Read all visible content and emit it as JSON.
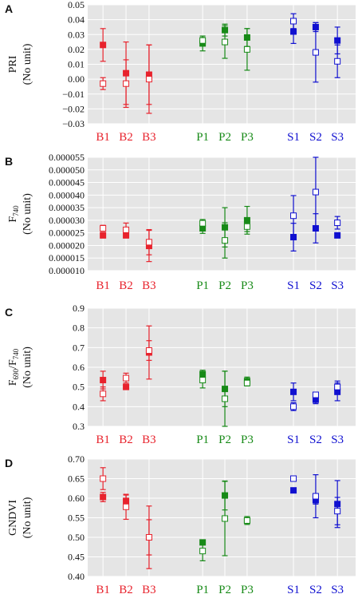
{
  "colors": {
    "B": "#e8232d",
    "P": "#178a17",
    "S": "#1010d0",
    "background": "#e5e5e5"
  },
  "chart_data": [
    {
      "panel": "A",
      "type": "scatter",
      "ylabel": [
        "PRI",
        "(No unit)"
      ],
      "ylim": [
        -0.03,
        0.05
      ],
      "yticks": [
        -0.03,
        -0.02,
        -0.01,
        0.0,
        0.01,
        0.02,
        0.03,
        0.04,
        0.05
      ],
      "ytick_labels": [
        "−0.03",
        "−0.02",
        "−0.01",
        "0.00",
        "0.01",
        "0.02",
        "0.03",
        "0.04",
        "0.05"
      ],
      "categories": [
        "B1",
        "B2",
        "B3",
        "P1",
        "P2",
        "P3",
        "S1",
        "S2",
        "S3"
      ],
      "grid": true,
      "series": [
        {
          "marker": "filled-square",
          "values": [
            0.023,
            0.004,
            0.003,
            0.024,
            0.033,
            0.028,
            0.032,
            0.035,
            0.026
          ],
          "err": [
            0.011,
            0.021,
            0.02,
            0.005,
            0.004,
            0.006,
            0.008,
            0.003,
            0.009
          ]
        },
        {
          "marker": "open-square",
          "values": [
            -0.003,
            -0.003,
            0.0,
            0.026,
            0.025,
            0.02,
            0.039,
            0.018,
            0.012
          ],
          "err": [
            0.004,
            0.016,
            0.023,
            0.002,
            0.011,
            0.014,
            0.005,
            0.02,
            0.011
          ]
        }
      ]
    },
    {
      "panel": "B",
      "type": "scatter",
      "ylabel": [
        "F740",
        "(No unit)"
      ],
      "ylim": [
        1e-05,
        5.5e-05
      ],
      "yticks": [
        1e-05,
        1.5e-05,
        2e-05,
        2.5e-05,
        3e-05,
        3.5e-05,
        4e-05,
        4.5e-05,
        5e-05,
        5.5e-05
      ],
      "ytick_labels": [
        "0.000010",
        "0.000015",
        "0.000020",
        "0.000025",
        "0.000030",
        "0.000035",
        "0.000040",
        "0.000045",
        "0.000050",
        "0.000055"
      ],
      "categories": [
        "B1",
        "B2",
        "B3",
        "P1",
        "P2",
        "P3",
        "S1",
        "S2",
        "S3"
      ],
      "grid": true,
      "series": [
        {
          "marker": "filled-square",
          "values": [
            2.4e-05,
            2.4e-05,
            1.98e-05,
            2.68e-05,
            2.72e-05,
            3e-05,
            2.33e-05,
            2.68e-05,
            2.4e-05
          ],
          "err": [
            1e-06,
            1e-06,
            6.2e-06,
            2e-06,
            7.8e-06,
            5.5e-06,
            5.5e-06,
            5.8e-06,
            1e-06
          ]
        },
        {
          "marker": "open-square",
          "values": [
            2.68e-05,
            2.62e-05,
            2.13e-05,
            2.88e-05,
            2.2e-05,
            2.75e-05,
            3.18e-05,
            4.12e-05,
            2.9e-05
          ],
          "err": [
            1.2e-06,
            2.7e-06,
            5e-06,
            1.5e-06,
            7e-06,
            2e-06,
            8e-06,
            1.4e-05,
            2.5e-06
          ]
        }
      ]
    },
    {
      "panel": "C",
      "type": "scatter",
      "ylabel": [
        "F690/F740",
        "(No unit)"
      ],
      "ylim": [
        0.3,
        0.9
      ],
      "yticks": [
        0.3,
        0.4,
        0.5,
        0.6,
        0.7,
        0.8,
        0.9
      ],
      "ytick_labels": [
        "0.3",
        "0.4",
        "0.5",
        "0.6",
        "0.7",
        "0.8",
        "0.9"
      ],
      "categories": [
        "B1",
        "B2",
        "B3",
        "P1",
        "P2",
        "P3",
        "S1",
        "S2",
        "S3"
      ],
      "grid": true,
      "series": [
        {
          "marker": "filled-square",
          "values": [
            0.535,
            0.5,
            0.675,
            0.565,
            0.49,
            0.53,
            0.475,
            0.435,
            0.475
          ],
          "err": [
            0.045,
            0.01,
            0.135,
            0.02,
            0.09,
            0.02,
            0.045,
            0.02,
            0.045
          ]
        },
        {
          "marker": "open-square",
          "values": [
            0.465,
            0.545,
            0.685,
            0.535,
            0.44,
            0.52,
            0.4,
            0.46,
            0.5
          ],
          "err": [
            0.035,
            0.025,
            0.05,
            0.04,
            0.14,
            0.015,
            0.02,
            0.01,
            0.03
          ]
        }
      ]
    },
    {
      "panel": "D",
      "type": "scatter",
      "ylabel": [
        "GNDVI",
        "(No unit)"
      ],
      "ylim": [
        0.4,
        0.7
      ],
      "yticks": [
        0.4,
        0.45,
        0.5,
        0.55,
        0.6,
        0.65,
        0.7
      ],
      "ytick_labels": [
        "0.40",
        "0.45",
        "0.50",
        "0.55",
        "0.60",
        "0.65",
        "0.70"
      ],
      "categories": [
        "B1",
        "B2",
        "B3",
        "P1",
        "P2",
        "P3",
        "S1",
        "S2",
        "S3"
      ],
      "grid": true,
      "series": [
        {
          "marker": "filled-square",
          "values": [
            0.603,
            0.593,
            0.5,
            0.487,
            0.607,
            0.543,
            0.62,
            0.595,
            0.585
          ],
          "err": [
            0.012,
            0.015,
            0.08,
            0.003,
            0.037,
            0.01,
            0.002,
            0.01,
            0.06
          ]
        },
        {
          "marker": "open-square",
          "values": [
            0.65,
            0.578,
            0.5,
            0.465,
            0.548,
            0.543,
            0.65,
            0.605,
            0.567
          ],
          "err": [
            0.028,
            0.032,
            0.045,
            0.025,
            0.095,
            0.01,
            0.002,
            0.055,
            0.035
          ]
        }
      ]
    }
  ]
}
